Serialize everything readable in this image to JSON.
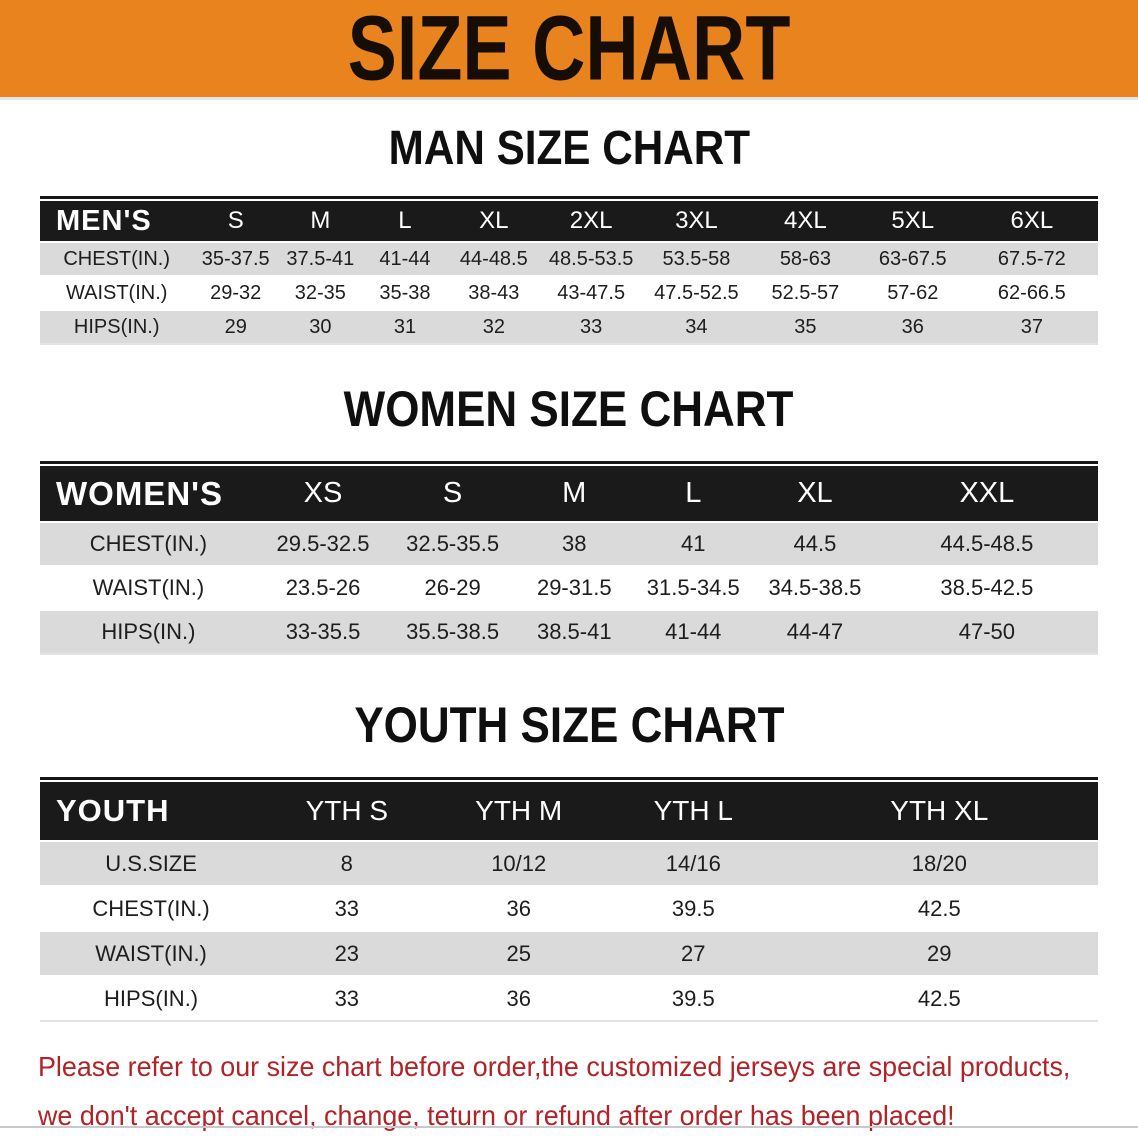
{
  "banner": {
    "title": "SIZE CHART",
    "bg_color": "#E8831E",
    "text_color": "#160e04"
  },
  "sections": [
    {
      "heading": "MAN SIZE CHART",
      "corner": "MEN'S",
      "columns": [
        "S",
        "M",
        "L",
        "XL",
        "2XL",
        "3XL",
        "4XL",
        "5XL",
        "6XL"
      ],
      "rows": [
        {
          "label": "CHEST(IN.)",
          "values": [
            "35-37.5",
            "37.5-41",
            "41-44",
            "44-48.5",
            "48.5-53.5",
            "53.5-58",
            "58-63",
            "63-67.5",
            "67.5-72"
          ]
        },
        {
          "label": "WAIST(IN.)",
          "values": [
            "29-32",
            "32-35",
            "35-38",
            "38-43",
            "43-47.5",
            "47.5-52.5",
            "52.5-57",
            "57-62",
            "62-66.5"
          ]
        },
        {
          "label": "HIPS(IN.)",
          "values": [
            "29",
            "30",
            "31",
            "32",
            "33",
            "34",
            "35",
            "36",
            "37"
          ]
        }
      ]
    },
    {
      "heading": "WOMEN SIZE CHART",
      "corner": "WOMEN'S",
      "columns": [
        "XS",
        "S",
        "M",
        "L",
        "XL",
        "XXL"
      ],
      "rows": [
        {
          "label": "CHEST(IN.)",
          "values": [
            "29.5-32.5",
            "32.5-35.5",
            "38",
            "41",
            "44.5",
            "44.5-48.5"
          ]
        },
        {
          "label": "WAIST(IN.)",
          "values": [
            "23.5-26",
            "26-29",
            "29-31.5",
            "31.5-34.5",
            "34.5-38.5",
            "38.5-42.5"
          ]
        },
        {
          "label": "HIPS(IN.)",
          "values": [
            "33-35.5",
            "35.5-38.5",
            "38.5-41",
            "41-44",
            "44-47",
            "47-50"
          ]
        }
      ]
    },
    {
      "heading": "YOUTH SIZE CHART",
      "corner": "YOUTH",
      "columns": [
        "YTH S",
        "YTH M",
        "YTH L",
        "YTH XL"
      ],
      "rows": [
        {
          "label": "U.S.SIZE",
          "values": [
            "8",
            "10/12",
            "14/16",
            "18/20"
          ]
        },
        {
          "label": "CHEST(IN.)",
          "values": [
            "33",
            "36",
            "39.5",
            "42.5"
          ]
        },
        {
          "label": "WAIST(IN.)",
          "values": [
            "23",
            "25",
            "27",
            "29"
          ]
        },
        {
          "label": "HIPS(IN.)",
          "values": [
            "33",
            "36",
            "39.5",
            "42.5"
          ]
        }
      ]
    }
  ],
  "disclaimer": {
    "line1": "Please refer to our size chart before order,the customized jerseys are special products,",
    "line2": "we don't accept cancel, change, teturn or refund after order has been placed!",
    "color": "#B22328"
  }
}
